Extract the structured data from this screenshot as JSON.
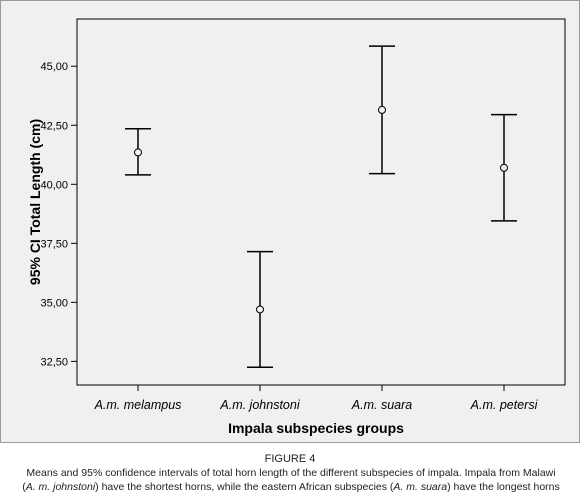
{
  "chart_data": {
    "type": "errorbar",
    "categories": [
      "A.m. melampus",
      "A.m. johnstoni",
      "A.m. suara",
      "A.m. petersi"
    ],
    "means": [
      41.35,
      34.7,
      43.15,
      40.7
    ],
    "ci_lower": [
      40.4,
      32.25,
      40.45,
      38.45
    ],
    "ci_upper": [
      42.35,
      37.15,
      45.85,
      42.95
    ],
    "xlabel": "Impala subspecies groups",
    "ylabel": "95% CI Total Length (cm)",
    "ylim": [
      31.5,
      47.0
    ],
    "yticks": [
      "32,50",
      "35,00",
      "37,50",
      "40,00",
      "42,50",
      "45,00"
    ],
    "ytick_values": [
      32.5,
      35.0,
      37.5,
      40.0,
      42.5,
      45.0
    ],
    "grid": false
  },
  "caption": {
    "figure_label": "FIGURE 4",
    "line1": "Means and 95% confidence intervals of total horn length of the different subspecies of impala. Impala from Malawi",
    "line2_pre": "(",
    "line2_name1": "A. m. johnstoni",
    "line2_mid": ") have the shortest horns, while the eastern African subspecies (",
    "line2_name2": "A. m. suara",
    "line2_post": ") have the longest horns"
  }
}
